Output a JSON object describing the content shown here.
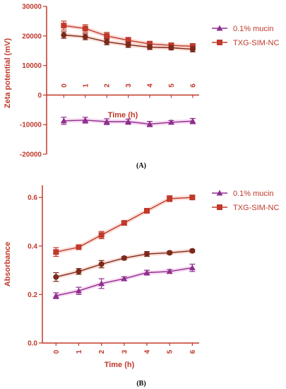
{
  "colors": {
    "axis": "#c0392b",
    "mucin": "#8e2f8e",
    "txg": "#c0392b",
    "third": "#7b2a1a",
    "halo_mucin": "#f4bde8",
    "halo_txg": "#f6c3b8"
  },
  "chart_data": [
    {
      "type": "line",
      "panel_label": "(A)",
      "xlabel": "Time (h)",
      "ylabel": "Zeta potential (mV)",
      "x": [
        0,
        1,
        2,
        3,
        4,
        5,
        6
      ],
      "x_tick_labels": [
        "0",
        "1",
        "2",
        "3",
        "4",
        "5",
        "6"
      ],
      "xlim": [
        -0.8,
        6.3
      ],
      "ylim": [
        -20000,
        30000
      ],
      "y_ticks": [
        -20000,
        -10000,
        0,
        10000,
        20000,
        30000
      ],
      "y_tick_labels": [
        "-20000",
        "-10000",
        "0",
        "10000",
        "20000",
        "30000"
      ],
      "grid": false,
      "legend_position": "right",
      "legend": [
        {
          "label": "0.1% mucin",
          "marker": "triangle",
          "color": "#8e2f8e"
        },
        {
          "label": "TXG-SIM-NC",
          "marker": "square",
          "color": "#c0392b"
        }
      ],
      "series": [
        {
          "color": "#8e2f8e",
          "marker": "triangle",
          "values": [
            -8700,
            -8500,
            -9000,
            -9000,
            -9800,
            -9200,
            -8800
          ],
          "errors": [
            1200,
            1000,
            1000,
            900,
            900,
            600,
            900
          ]
        },
        {
          "color": "#c0392b",
          "marker": "square",
          "values": [
            23500,
            22500,
            20000,
            18500,
            17300,
            16800,
            16500
          ],
          "errors": [
            1500,
            1300,
            1200,
            1000,
            900,
            800,
            900
          ]
        },
        {
          "color": "#7b2a1a",
          "marker": "circle",
          "values": [
            20300,
            19700,
            18000,
            17000,
            16200,
            16000,
            15500
          ],
          "errors": [
            1100,
            1000,
            1000,
            900,
            800,
            700,
            900
          ]
        }
      ]
    },
    {
      "type": "line",
      "panel_label": "(B)",
      "xlabel": "Time (h)",
      "ylabel": "Absorbance",
      "x": [
        0,
        1,
        2,
        3,
        4,
        5,
        6
      ],
      "x_tick_labels": [
        "0",
        "1",
        "2",
        "3",
        "4",
        "5",
        "6"
      ],
      "xlim": [
        -0.6,
        6.3
      ],
      "ylim": [
        0.0,
        0.65
      ],
      "y_ticks": [
        0.0,
        0.2,
        0.4,
        0.6
      ],
      "y_tick_labels": [
        "0.0",
        "0.2",
        "0.4",
        "0.6"
      ],
      "grid": false,
      "legend_position": "top-right",
      "legend": [
        {
          "label": "0.1% mucin",
          "marker": "triangle",
          "color": "#8e2f8e"
        },
        {
          "label": "TXG-SIM-NC",
          "marker": "square",
          "color": "#c0392b"
        }
      ],
      "series": [
        {
          "color": "#8e2f8e",
          "marker": "triangle",
          "values": [
            0.195,
            0.215,
            0.245,
            0.265,
            0.29,
            0.295,
            0.31
          ],
          "errors": [
            0.012,
            0.015,
            0.02,
            0.008,
            0.01,
            0.008,
            0.015
          ]
        },
        {
          "color": "#c0392b",
          "marker": "square",
          "values": [
            0.375,
            0.395,
            0.445,
            0.495,
            0.545,
            0.595,
            0.6
          ],
          "errors": [
            0.018,
            0.01,
            0.015,
            0.007,
            0.01,
            0.012,
            0.006
          ]
        },
        {
          "color": "#7b2a1a",
          "marker": "circle",
          "values": [
            0.272,
            0.295,
            0.325,
            0.35,
            0.367,
            0.372,
            0.38
          ],
          "errors": [
            0.018,
            0.012,
            0.015,
            0.006,
            0.01,
            0.006,
            0.006
          ]
        }
      ]
    }
  ]
}
